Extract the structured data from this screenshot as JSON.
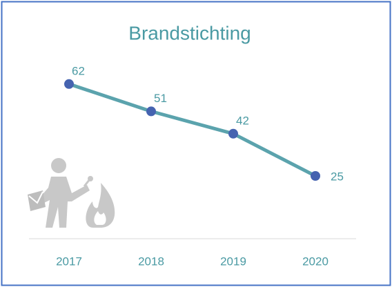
{
  "chart_data": {
    "type": "line",
    "title": "Brandstichting",
    "categories": [
      "2017",
      "2018",
      "2019",
      "2020"
    ],
    "series": [
      {
        "name": "Brandstichting",
        "color": "#5ba3ad",
        "marker_color": "#4563b0",
        "values": [
          62,
          51,
          42,
          25
        ]
      }
    ]
  }
}
